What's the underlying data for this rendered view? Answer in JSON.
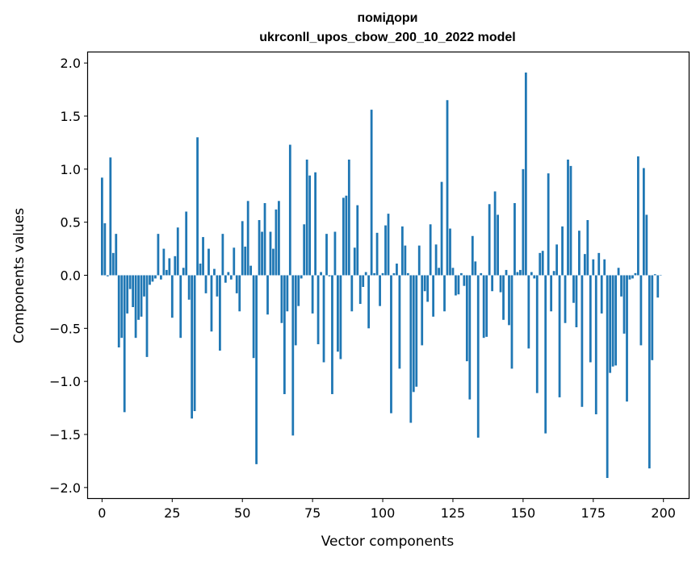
{
  "chart_data": {
    "type": "bar",
    "title": "помідори",
    "subtitle": "ukrconll_upos_cbow_200_10_2022 model",
    "xlabel": "Vector components",
    "ylabel": "Components values",
    "xlim": [
      -5,
      209
    ],
    "ylim": [
      -2.1,
      2.1
    ],
    "xticks": [
      0,
      25,
      50,
      75,
      100,
      125,
      150,
      175,
      200
    ],
    "yticks": [
      -2.0,
      -1.5,
      -1.0,
      -0.5,
      0.0,
      0.5,
      1.0,
      1.5,
      2.0
    ],
    "xtick_labels": [
      "0",
      "25",
      "50",
      "75",
      "100",
      "125",
      "150",
      "175",
      "200"
    ],
    "ytick_labels": [
      "−2.0",
      "−1.5",
      "−1.0",
      "−0.5",
      "0.0",
      "0.5",
      "1.0",
      "1.5",
      "2.0"
    ],
    "bar_color": "#1f77b4",
    "values": [
      0.92,
      0.49,
      -0.01,
      1.11,
      0.21,
      0.39,
      -0.68,
      -0.59,
      -1.29,
      -0.36,
      -0.13,
      -0.3,
      -0.59,
      -0.42,
      -0.39,
      -0.2,
      -0.77,
      -0.09,
      -0.06,
      -0.03,
      0.39,
      -0.04,
      0.25,
      0.05,
      0.16,
      -0.4,
      0.18,
      0.45,
      -0.59,
      0.07,
      0.6,
      -0.23,
      -1.35,
      -1.28,
      1.3,
      0.11,
      0.36,
      -0.17,
      0.25,
      -0.53,
      0.06,
      -0.2,
      -0.71,
      0.39,
      -0.07,
      0.03,
      -0.04,
      0.26,
      -0.17,
      -0.34,
      0.51,
      0.27,
      0.7,
      0.09,
      -0.78,
      -1.78,
      0.52,
      0.41,
      0.68,
      -0.37,
      0.41,
      0.25,
      0.62,
      0.7,
      -0.45,
      -1.12,
      -0.34,
      1.23,
      -1.51,
      -0.66,
      -0.29,
      -0.03,
      0.48,
      1.09,
      0.94,
      -0.36,
      0.97,
      -0.65,
      0.03,
      -0.82,
      0.39,
      -0.01,
      -1.12,
      0.41,
      -0.72,
      -0.79,
      0.73,
      0.75,
      1.09,
      -0.34,
      0.26,
      0.66,
      -0.27,
      -0.11,
      0.03,
      -0.5,
      1.56,
      0.02,
      0.4,
      -0.29,
      0.02,
      0.47,
      0.58,
      -1.3,
      0.02,
      0.11,
      -0.88,
      0.46,
      0.28,
      0.02,
      -1.39,
      -1.1,
      -1.05,
      0.28,
      -0.66,
      -0.15,
      -0.25,
      0.48,
      -0.39,
      0.29,
      0.07,
      0.88,
      -0.34,
      1.65,
      0.44,
      0.07,
      -0.19,
      -0.18,
      0.02,
      -0.1,
      -0.81,
      -1.17,
      0.37,
      0.13,
      -1.53,
      0.02,
      -0.59,
      -0.58,
      0.67,
      -0.15,
      0.79,
      0.57,
      -0.16,
      -0.42,
      0.05,
      -0.47,
      -0.88,
      0.68,
      0.03,
      0.05,
      1.0,
      1.91,
      -0.69,
      0.03,
      -0.03,
      -1.11,
      0.21,
      0.23,
      -1.49,
      0.96,
      -0.34,
      0.04,
      0.29,
      -1.15,
      0.46,
      -0.45,
      1.09,
      1.03,
      -0.26,
      -0.49,
      0.42,
      -1.24,
      0.2,
      0.52,
      -0.82,
      0.15,
      -1.31,
      0.21,
      -0.36,
      0.15,
      -1.91,
      -0.92,
      -0.86,
      -0.85,
      0.07,
      -0.2,
      -0.55,
      -1.19,
      -0.04,
      -0.03,
      0.02,
      1.12,
      -0.66,
      1.01,
      0.57,
      -1.82,
      -0.8,
      0.01,
      -0.21,
      0.0
    ]
  }
}
